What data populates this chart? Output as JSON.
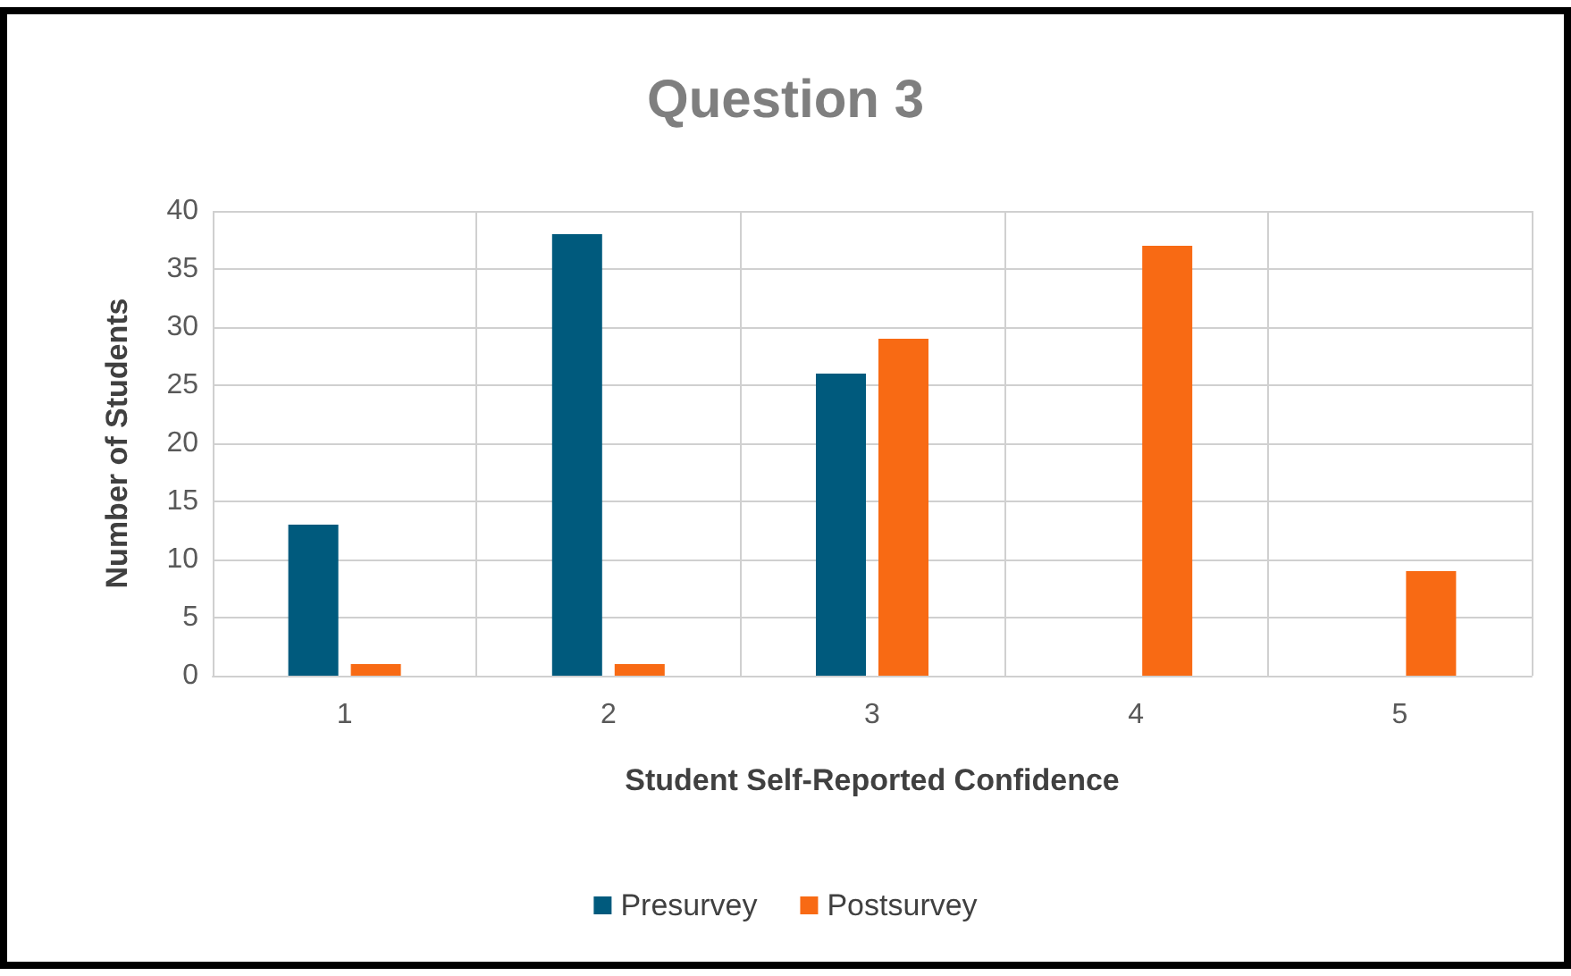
{
  "chart_data": {
    "type": "bar",
    "title": "Question 3",
    "xlabel": "Student Self-Reported Confidence",
    "ylabel": "Number of Students",
    "categories": [
      "1",
      "2",
      "3",
      "4",
      "5"
    ],
    "series": [
      {
        "name": "Presurvey",
        "color": "#005a7d",
        "values": [
          13,
          38,
          26,
          0,
          0
        ]
      },
      {
        "name": "Postsurvey",
        "color": "#f86a14",
        "values": [
          1,
          1,
          29,
          37,
          9
        ]
      }
    ],
    "ylim": [
      0,
      40
    ],
    "yticks": [
      0,
      5,
      10,
      15,
      20,
      25,
      30,
      35,
      40
    ],
    "grid": true,
    "legend": "bottom"
  }
}
